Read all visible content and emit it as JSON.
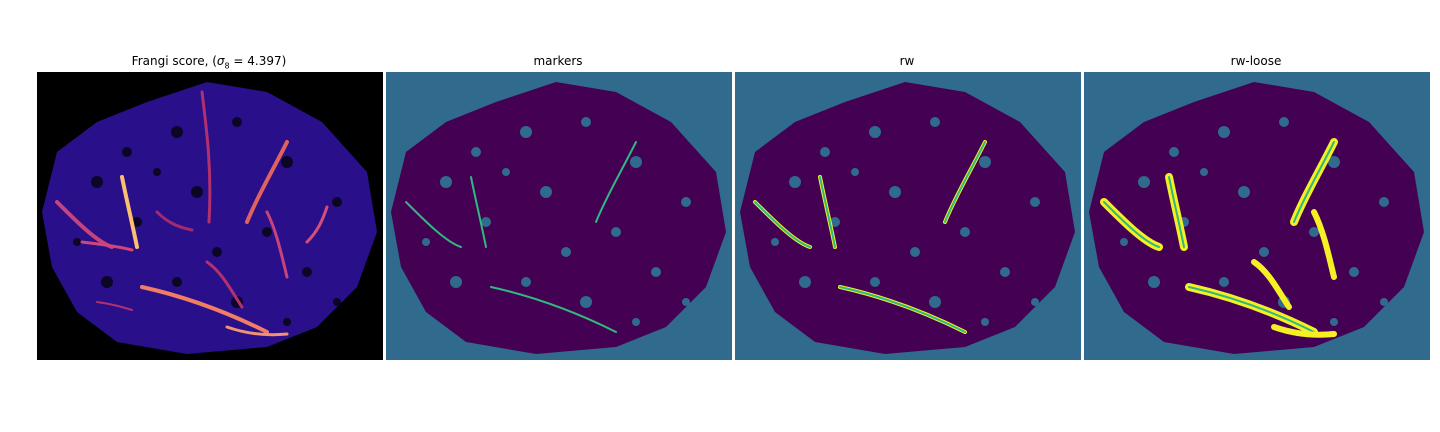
{
  "figure": {
    "panels": [
      {
        "title_prefix": "Frangi score, (",
        "title_symbol": "σ",
        "title_sub": "8",
        "title_suffix": " = 4.397)",
        "colormap": "magma"
      },
      {
        "title": "markers",
        "colormap": "viridis"
      },
      {
        "title": "rw",
        "colormap": "viridis"
      },
      {
        "title": "rw-loose",
        "colormap": "viridis"
      }
    ],
    "colors": {
      "frangi_background": "#000000",
      "frangi_tissue": "#2a0f8a",
      "frangi_vessel_low": "#b3306f",
      "frangi_vessel_high": "#fcbf6f",
      "seg_background": "#306a8c",
      "seg_tissue": "#440154",
      "seg_vessel_marker": "#2fb87f",
      "seg_vessel_loose": "#f5f024"
    }
  }
}
